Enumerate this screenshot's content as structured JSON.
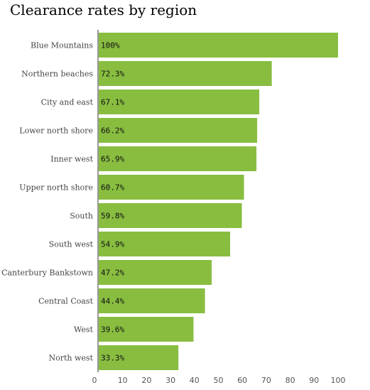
{
  "chart_data": {
    "type": "bar",
    "orientation": "horizontal",
    "title": "Clearance rates by region",
    "categories": [
      "Blue Mountains",
      "Northern beaches",
      "City and east",
      "Lower north shore",
      "Inner west",
      "Upper north shore",
      "South",
      "South west",
      "Canterbury Bankstown",
      "Central Coast",
      "West",
      "North west"
    ],
    "values": [
      100,
      72.3,
      67.1,
      66.2,
      65.9,
      60.7,
      59.8,
      54.9,
      47.2,
      44.4,
      39.6,
      33.3
    ],
    "value_labels": [
      "100%",
      "72.3%",
      "67.1%",
      "66.2%",
      "65.9%",
      "60.7%",
      "59.8%",
      "54.9%",
      "47.2%",
      "44.4%",
      "39.6%",
      "33.3%"
    ],
    "x_ticks": [
      0,
      10,
      20,
      30,
      40,
      50,
      60,
      70,
      80,
      90,
      100
    ],
    "xlim": [
      0,
      100
    ],
    "xlabel": "",
    "ylabel": "",
    "grid": false,
    "legend": "none",
    "bar_color": "#88bd40",
    "axis_color": "#999999"
  }
}
